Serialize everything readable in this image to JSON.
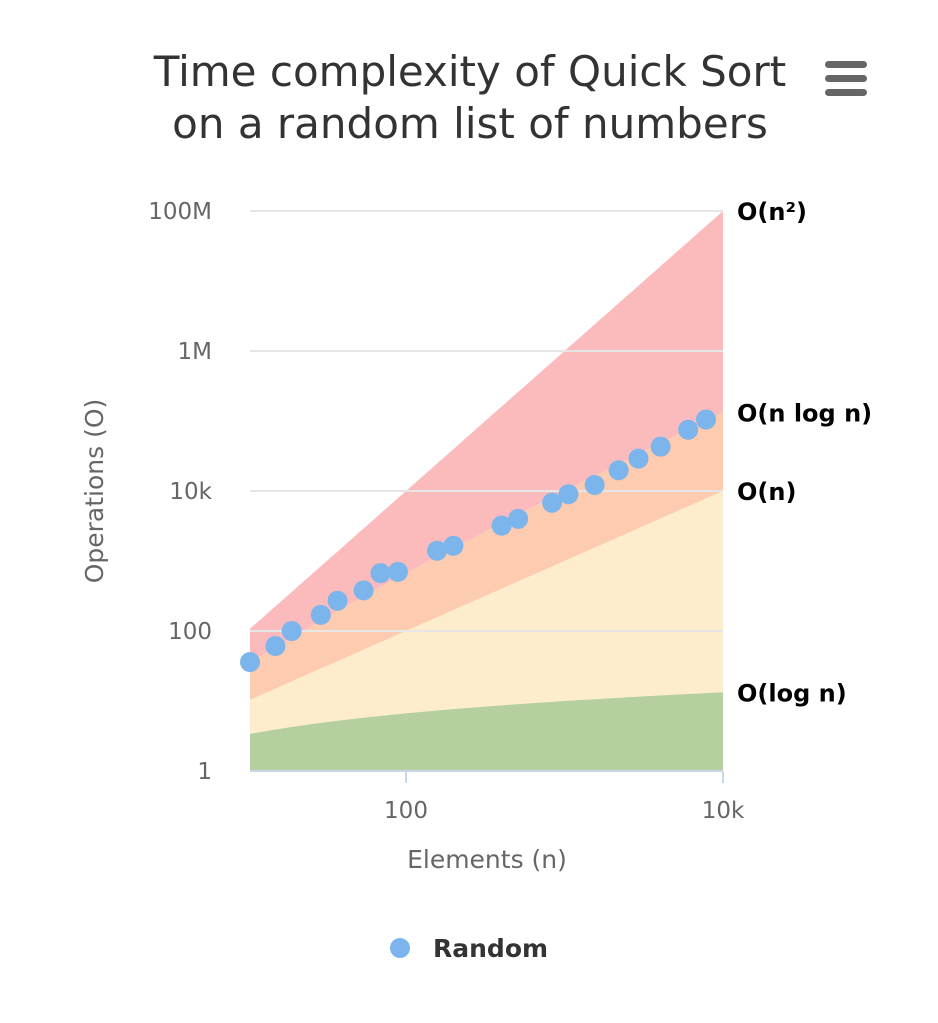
{
  "chart_data": {
    "type": "scatter",
    "title_lines": [
      "Time complexity of Quick Sort",
      "on a random list of numbers"
    ],
    "xlabel": "Elements (n)",
    "ylabel": "Operations (O)",
    "x_scale": "log",
    "y_scale": "log",
    "xlim": [
      12,
      10000
    ],
    "ylim": [
      1,
      100000000
    ],
    "x_ticks": [
      {
        "value": 100,
        "label": "100"
      },
      {
        "value": 10000,
        "label": "10k"
      }
    ],
    "y_ticks": [
      {
        "value": 1,
        "label": "1"
      },
      {
        "value": 100,
        "label": "100"
      },
      {
        "value": 10000,
        "label": "10k"
      },
      {
        "value": 1000000,
        "label": "1M"
      },
      {
        "value": 100000000,
        "label": "100M"
      }
    ],
    "grid": true,
    "legend_position": "bottom",
    "series": [
      {
        "name": "Random",
        "color": "#7cb5ec",
        "points": [
          {
            "x": 10,
            "y": 36
          },
          {
            "x": 15,
            "y": 61
          },
          {
            "x": 19,
            "y": 100
          },
          {
            "x": 29,
            "y": 170
          },
          {
            "x": 37,
            "y": 270
          },
          {
            "x": 54,
            "y": 380
          },
          {
            "x": 69,
            "y": 670
          },
          {
            "x": 89,
            "y": 700
          },
          {
            "x": 157,
            "y": 1400
          },
          {
            "x": 199,
            "y": 1650
          },
          {
            "x": 401,
            "y": 3200
          },
          {
            "x": 510,
            "y": 4000
          },
          {
            "x": 835,
            "y": 6800
          },
          {
            "x": 1059,
            "y": 9000
          },
          {
            "x": 1550,
            "y": 12200
          },
          {
            "x": 2195,
            "y": 19800
          },
          {
            "x": 2930,
            "y": 29000
          },
          {
            "x": 4039,
            "y": 43000
          },
          {
            "x": 6027,
            "y": 75000
          },
          {
            "x": 7811,
            "y": 105000
          }
        ]
      }
    ],
    "complexity_bands": [
      {
        "label": "O(n²)",
        "color": "#fbbbbd"
      },
      {
        "label": "O(n log n)",
        "color": "#fdcbb0"
      },
      {
        "label": "O(n)",
        "color": "#fdedcc"
      },
      {
        "label": "O(log n)",
        "color": "#dfe3b9"
      },
      {
        "label": "",
        "color": "#b5cf9f"
      }
    ]
  },
  "menu_icon": "hamburger-menu-icon"
}
